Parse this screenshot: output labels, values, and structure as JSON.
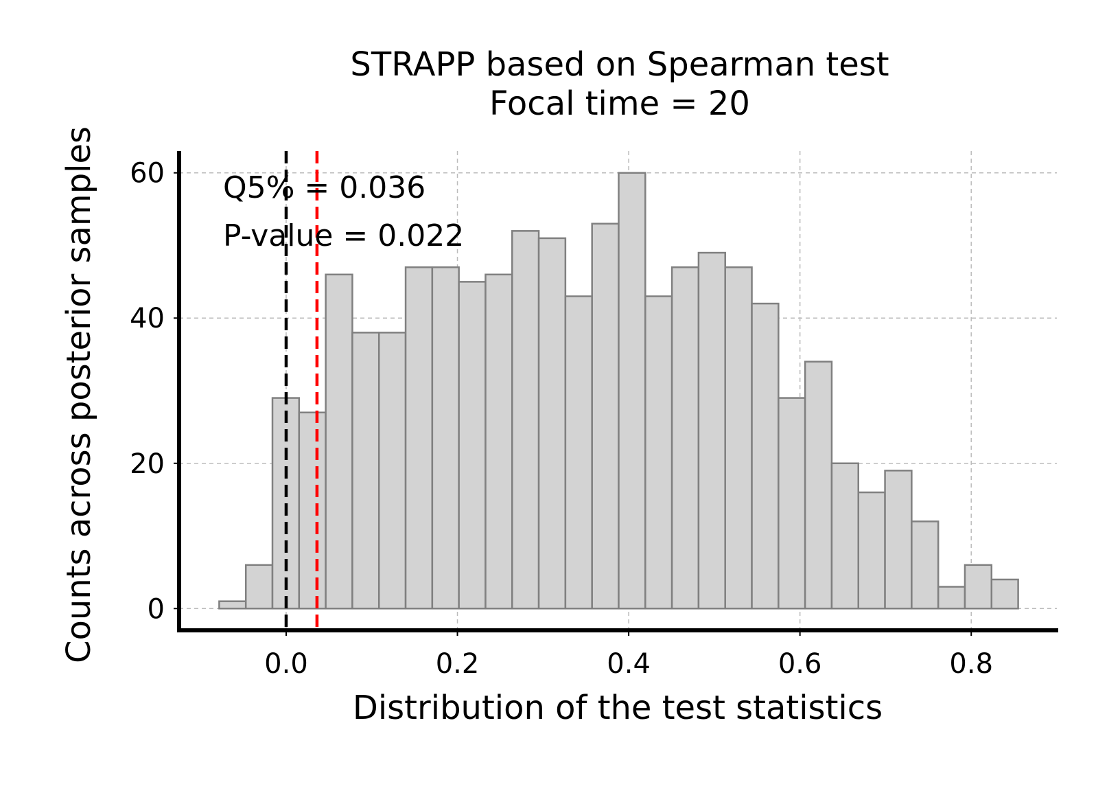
{
  "chart_data": {
    "type": "histogram",
    "title": [
      "STRAPP based on Spearman test",
      "Focal time = 20"
    ],
    "xlabel": "Distribution of the test statistics",
    "ylabel": "Counts across posterior samples",
    "xlim": [
      -0.125,
      0.9
    ],
    "ylim": [
      -3,
      63
    ],
    "xticks": [
      0.0,
      0.2,
      0.4,
      0.6,
      0.8
    ],
    "xtick_labels": [
      "0.0",
      "0.2",
      "0.4",
      "0.6",
      "0.8"
    ],
    "yticks": [
      0,
      20,
      40,
      60
    ],
    "ytick_labels": [
      "0",
      "20",
      "40",
      "60"
    ],
    "grid": true,
    "bins": {
      "edges": [
        -0.0782,
        -0.0471,
        -0.016,
        0.0151,
        0.0462,
        0.0773,
        0.1084,
        0.1395,
        0.1706,
        0.2017,
        0.2328,
        0.2639,
        0.295,
        0.3261,
        0.3572,
        0.3883,
        0.4194,
        0.4505,
        0.4816,
        0.5127,
        0.5438,
        0.5749,
        0.606,
        0.6371,
        0.6682,
        0.6993,
        0.7304,
        0.7615,
        0.7926,
        0.8237,
        0.8548
      ],
      "counts": [
        1,
        6,
        29,
        27,
        46,
        38,
        38,
        47,
        47,
        45,
        46,
        52,
        51,
        43,
        53,
        60,
        43,
        47,
        49,
        47,
        42,
        29,
        34,
        20,
        16,
        19,
        12,
        3,
        6,
        4
      ],
      "fill": "#d3d3d3",
      "edge": "#808080"
    },
    "reference_lines": [
      {
        "name": "null-line",
        "x": 0.0,
        "color": "#000000",
        "style": "dashed"
      },
      {
        "name": "q5-line",
        "x": 0.036,
        "color": "#ff0000",
        "style": "dashed"
      }
    ],
    "annotations": [
      "Q5% = 0.036",
      "P-value = 0.022"
    ]
  }
}
